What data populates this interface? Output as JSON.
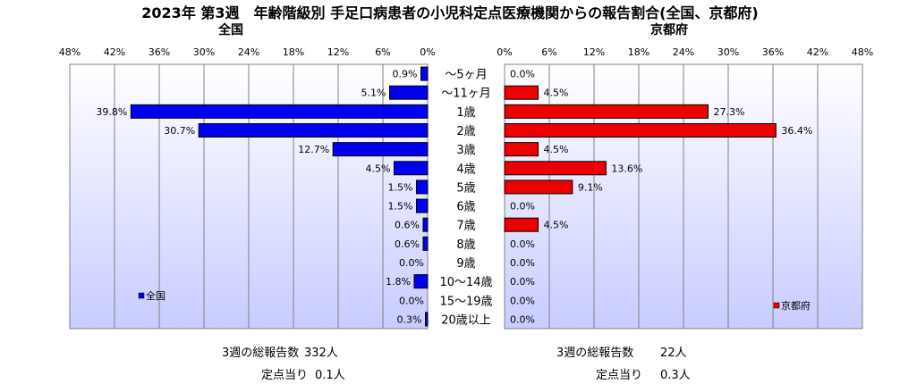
{
  "title": "2023年 第3週　年齢階級別 手足口病患者の小児科定点医療機関からの報告割合(全国、京都府)",
  "categories": [
    "～5ヶ月",
    "～11ヶ月",
    "1歳",
    "2歳",
    "3歳",
    "4歳",
    "5歳",
    "6歳",
    "7歳",
    "8歳",
    "9歳",
    "10～14歳",
    "15～19歳",
    "20歳以上"
  ],
  "chart_data": [
    {
      "type": "bar",
      "orientation": "horizontal",
      "direction": "right-to-left",
      "title": "全国",
      "categories": [
        "～5ヶ月",
        "～11ヶ月",
        "1歳",
        "2歳",
        "3歳",
        "4歳",
        "5歳",
        "6歳",
        "7歳",
        "8歳",
        "9歳",
        "10～14歳",
        "15～19歳",
        "20歳以上"
      ],
      "series": [
        {
          "name": "全国",
          "values": [
            0.9,
            5.1,
            39.8,
            30.7,
            12.7,
            4.5,
            1.5,
            1.5,
            0.6,
            0.6,
            0.0,
            1.8,
            0.0,
            0.3
          ]
        }
      ],
      "value_labels": [
        "0.9%",
        "5.1%",
        "39.8%",
        "30.7%",
        "12.7%",
        "4.5%",
        "1.5%",
        "1.5%",
        "0.6%",
        "0.6%",
        "0.0%",
        "1.8%",
        "0.0%",
        "0.3%"
      ],
      "xticks": [
        "48%",
        "42%",
        "36%",
        "30%",
        "24%",
        "18%",
        "12%",
        "6%",
        "0%"
      ],
      "xlim": [
        0,
        48
      ],
      "grid": true,
      "legend_position": "bottom-left",
      "color": "#0000ee"
    },
    {
      "type": "bar",
      "orientation": "horizontal",
      "direction": "left-to-right",
      "title": "京都府",
      "categories": [
        "～5ヶ月",
        "～11ヶ月",
        "1歳",
        "2歳",
        "3歳",
        "4歳",
        "5歳",
        "6歳",
        "7歳",
        "8歳",
        "9歳",
        "10～14歳",
        "15～19歳",
        "20歳以上"
      ],
      "series": [
        {
          "name": "京都府",
          "values": [
            0.0,
            4.5,
            27.3,
            36.4,
            4.5,
            13.6,
            9.1,
            0.0,
            4.5,
            0.0,
            0.0,
            0.0,
            0.0,
            0.0
          ]
        }
      ],
      "value_labels": [
        "0.0%",
        "4.5%",
        "27.3%",
        "36.4%",
        "4.5%",
        "13.6%",
        "9.1%",
        "0.0%",
        "4.5%",
        "0.0%",
        "0.0%",
        "0.0%",
        "0.0%",
        "0.0%"
      ],
      "xticks": [
        "0%",
        "6%",
        "12%",
        "18%",
        "24%",
        "30%",
        "36%",
        "42%",
        "48%"
      ],
      "xlim": [
        0,
        48
      ],
      "grid": true,
      "legend_position": "bottom-right",
      "color": "#ee0000"
    }
  ],
  "stats": {
    "national": {
      "total_label": "3週の総報告数",
      "total_value": "332人",
      "per_label": "定点当り",
      "per_value": "0.1人"
    },
    "kyoto": {
      "total_label": "3週の総報告数",
      "total_value": "22人",
      "per_label": "定点当り",
      "per_value": "0.3人"
    }
  },
  "colors": {
    "plot_bg": "#d4d8ff",
    "grid": "#808080",
    "national_bar": "#0000ee",
    "kyoto_bar": "#ee0000"
  }
}
